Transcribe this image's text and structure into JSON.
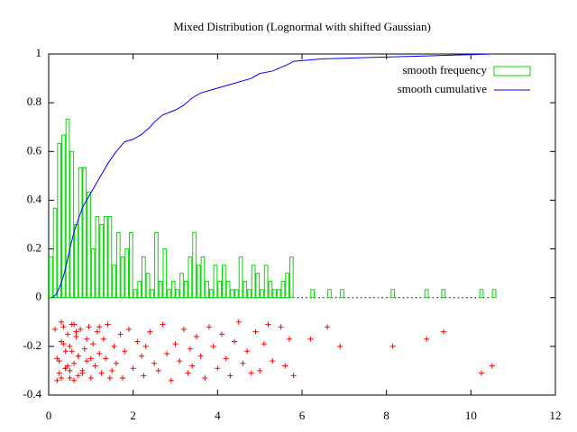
{
  "chart_data": {
    "type": "mixed",
    "title": "Mixed Distribution (Lognormal with shifted Gaussian)",
    "xlim": [
      0,
      12
    ],
    "xticks": [
      0,
      2,
      4,
      6,
      8,
      10,
      12
    ],
    "ylim": [
      -0.4,
      1
    ],
    "yticks": [
      -0.4,
      -0.2,
      0,
      0.2,
      0.4,
      0.6,
      0.8,
      1
    ],
    "grid": false,
    "legend": "top-right",
    "series": [
      {
        "type": "histogram",
        "name": "smooth frequency",
        "color": "#00dd00",
        "bins": [
          0,
          0.1,
          0.2,
          0.3,
          0.4,
          0.5,
          0.6,
          0.7,
          0.8,
          0.9,
          1,
          1.1,
          1.2,
          1.3,
          1.4,
          1.5,
          1.6,
          1.7,
          1.8,
          1.9,
          2,
          2.1,
          2.2,
          2.3,
          2.4,
          2.5,
          2.6,
          2.7,
          2.8,
          2.9,
          3,
          3.1,
          3.2,
          3.3,
          3.4,
          3.5,
          3.6,
          3.7,
          3.8,
          3.9,
          4,
          4.1,
          4.2,
          4.3,
          4.4,
          4.5,
          4.6,
          4.7,
          4.8,
          4.9,
          5,
          5.1,
          5.2,
          5.3,
          5.4,
          5.5,
          5.6,
          5.7,
          5.8,
          5.9,
          6,
          6.1,
          6.2,
          6.3,
          6.4,
          6.5,
          6.6,
          6.7,
          6.8,
          6.9,
          7,
          7.1,
          7.2,
          7.3,
          7.4,
          7.5,
          7.6,
          7.7,
          7.8,
          7.9,
          8,
          8.1,
          8.2,
          8.3,
          8.4,
          8.5,
          8.6,
          8.7,
          8.8,
          8.9,
          9,
          9.1,
          9.2,
          9.3,
          9.4,
          9.5,
          9.6,
          9.7,
          9.8,
          9.9,
          10,
          10.1,
          10.2,
          10.3,
          10.4,
          10.5,
          10.6
        ],
        "values": [
          0.167,
          0.367,
          0.633,
          0.667,
          0.733,
          0.6,
          0.3,
          0.533,
          0.533,
          0.433,
          0.2,
          0.333,
          0.3,
          0.333,
          0.333,
          0.133,
          0.267,
          0.167,
          0.2,
          0.267,
          0.033,
          0.067,
          0.167,
          0.1,
          0.033,
          0.267,
          0.067,
          0.2,
          0.033,
          0.067,
          0.033,
          0.1,
          0.067,
          0.167,
          0.267,
          0.133,
          0.167,
          0.067,
          0.033,
          0.133,
          0.067,
          0.133,
          0.067,
          0.033,
          0.033,
          0.167,
          0.067,
          0.033,
          0.133,
          0.1,
          0.033,
          0.133,
          0.067,
          0.033,
          0.033,
          0.067,
          0.1,
          0.167,
          0,
          0,
          0,
          0,
          0.033,
          0,
          0,
          0,
          0.033,
          0,
          0,
          0.033,
          0,
          0,
          0,
          0,
          0,
          0,
          0,
          0,
          0,
          0,
          0,
          0.033,
          0,
          0,
          0,
          0,
          0,
          0,
          0,
          0.033,
          0,
          0,
          0,
          0.033,
          0,
          0,
          0,
          0,
          0,
          0,
          0,
          0,
          0.033,
          0,
          0,
          0.033
        ]
      },
      {
        "type": "line",
        "name": "smooth cumulative",
        "color": "#0000ff",
        "x": [
          0.1,
          0.2,
          0.3,
          0.4,
          0.5,
          0.6,
          0.7,
          0.8,
          0.9,
          1.0,
          1.2,
          1.4,
          1.6,
          1.8,
          2.0,
          2.2,
          2.4,
          2.5,
          2.7,
          3.0,
          3.2,
          3.4,
          3.6,
          4.0,
          4.4,
          4.8,
          5.0,
          5.3,
          5.7,
          5.8,
          6.5,
          7.5,
          8.5,
          9.5,
          10.5
        ],
        "values": [
          0,
          0.02,
          0.06,
          0.12,
          0.2,
          0.27,
          0.32,
          0.37,
          0.4,
          0.43,
          0.49,
          0.55,
          0.6,
          0.64,
          0.65,
          0.67,
          0.7,
          0.72,
          0.75,
          0.77,
          0.79,
          0.82,
          0.84,
          0.86,
          0.88,
          0.9,
          0.92,
          0.93,
          0.96,
          0.97,
          0.98,
          0.985,
          0.99,
          0.995,
          1.0
        ]
      },
      {
        "type": "scatter",
        "color": "#ff0000",
        "x": [
          0.15,
          0.2,
          0.25,
          0.3,
          0.3,
          0.35,
          0.4,
          0.4,
          0.45,
          0.5,
          0.5,
          0.55,
          0.6,
          0.6,
          0.65,
          0.7,
          0.7,
          0.75,
          0.8,
          0.85,
          0.9,
          0.95,
          1.0,
          1.05,
          1.1,
          1.15,
          1.2,
          1.25,
          1.3,
          1.35,
          1.4,
          1.5,
          1.55,
          1.6,
          1.7,
          1.75,
          1.8,
          1.9,
          2.0,
          2.1,
          2.2,
          2.25,
          2.3,
          2.4,
          2.5,
          2.6,
          2.7,
          2.8,
          2.9,
          3.0,
          3.1,
          3.2,
          3.3,
          3.35,
          3.4,
          3.5,
          3.6,
          3.7,
          3.8,
          3.9,
          4.0,
          4.1,
          4.2,
          4.3,
          4.4,
          4.5,
          4.6,
          4.7,
          4.8,
          4.9,
          5.0,
          5.1,
          5.2,
          5.3,
          5.5,
          5.6,
          5.7,
          5.8,
          6.2,
          6.6,
          6.9,
          8.15,
          8.95,
          9.35,
          10.25,
          10.5,
          0.2,
          0.3,
          0.45,
          0.55,
          0.65,
          0.8,
          0.9,
          1.0,
          1.2,
          1.45,
          0.35,
          0.5,
          0.7,
          0.25,
          0.6,
          0.4
        ],
        "values": [
          -0.13,
          -0.25,
          -0.31,
          -0.18,
          -0.33,
          -0.12,
          -0.22,
          -0.29,
          -0.15,
          -0.33,
          -0.2,
          -0.11,
          -0.27,
          -0.34,
          -0.16,
          -0.24,
          -0.32,
          -0.13,
          -0.3,
          -0.21,
          -0.26,
          -0.12,
          -0.33,
          -0.19,
          -0.28,
          -0.14,
          -0.23,
          -0.31,
          -0.17,
          -0.25,
          -0.11,
          -0.3,
          -0.2,
          -0.27,
          -0.15,
          -0.33,
          -0.22,
          -0.13,
          -0.29,
          -0.18,
          -0.24,
          -0.32,
          -0.2,
          -0.14,
          -0.27,
          -0.3,
          -0.11,
          -0.23,
          -0.34,
          -0.19,
          -0.26,
          -0.13,
          -0.31,
          -0.21,
          -0.28,
          -0.16,
          -0.24,
          -0.33,
          -0.12,
          -0.2,
          -0.29,
          -0.15,
          -0.25,
          -0.32,
          -0.18,
          -0.1,
          -0.27,
          -0.22,
          -0.31,
          -0.14,
          -0.3,
          -0.19,
          -0.11,
          -0.26,
          -0.12,
          -0.28,
          -0.17,
          -0.32,
          -0.17,
          -0.12,
          -0.2,
          -0.2,
          -0.17,
          -0.14,
          -0.31,
          -0.28,
          -0.34,
          -0.1,
          -0.28,
          -0.22,
          -0.14,
          -0.31,
          -0.17,
          -0.25,
          -0.12,
          -0.33,
          -0.19,
          -0.3,
          -0.24,
          -0.26,
          -0.11,
          -0.29
        ]
      }
    ]
  }
}
